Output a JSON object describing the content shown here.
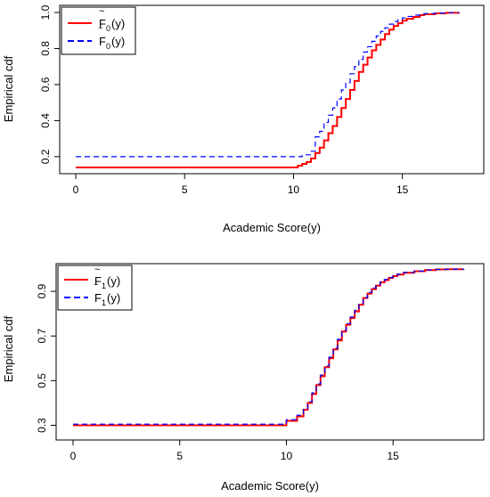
{
  "chart_data": [
    {
      "type": "line",
      "step": true,
      "xlabel": "Academic Score(y)",
      "ylabel": "Empirical cdf",
      "xlim": [
        0,
        18
      ],
      "ylim": [
        0.14,
        1.0
      ],
      "xticks": [
        0,
        5,
        10,
        15
      ],
      "xtick_labels": [
        "0",
        "5",
        "10",
        "15"
      ],
      "yticks": [
        0.2,
        0.4,
        0.6,
        0.8,
        1.0
      ],
      "ytick_labels": [
        "0.2",
        "0.4",
        "0.6",
        "0.8",
        "1.0"
      ],
      "grid": false,
      "legend_position": "top-left",
      "series": [
        {
          "legend_main": "F",
          "legend_accent": "~",
          "legend_sub": "0",
          "legend_suffix": "(y)",
          "color": "#ff0000",
          "dash": "solid",
          "x": [
            0,
            10.0,
            10.2,
            10.4,
            10.6,
            10.8,
            11.0,
            11.2,
            11.4,
            11.6,
            11.8,
            12.0,
            12.2,
            12.4,
            12.6,
            12.8,
            13.0,
            13.2,
            13.4,
            13.6,
            13.8,
            14.0,
            14.2,
            14.4,
            14.6,
            14.8,
            15.0,
            15.2,
            15.5,
            15.8,
            16.0,
            16.5,
            17.0,
            17.6
          ],
          "y": [
            0.14,
            0.14,
            0.15,
            0.16,
            0.17,
            0.19,
            0.22,
            0.25,
            0.29,
            0.33,
            0.37,
            0.42,
            0.47,
            0.52,
            0.57,
            0.62,
            0.67,
            0.71,
            0.75,
            0.79,
            0.82,
            0.85,
            0.88,
            0.905,
            0.925,
            0.94,
            0.955,
            0.965,
            0.975,
            0.985,
            0.99,
            0.995,
            0.998,
            1.0
          ]
        },
        {
          "legend_main": "F",
          "legend_accent": "‾",
          "legend_sub": "0",
          "legend_suffix": "(y)",
          "color": "#0000ff",
          "dash": "dashed",
          "x": [
            0,
            10.0,
            10.4,
            10.8,
            11.0,
            11.2,
            11.4,
            11.6,
            11.8,
            12.0,
            12.2,
            12.4,
            12.6,
            12.8,
            13.0,
            13.2,
            13.4,
            13.6,
            13.8,
            14.0,
            14.2,
            14.4,
            14.6,
            14.8,
            15.0,
            15.2,
            15.5,
            15.8,
            16.0,
            16.5,
            17.0,
            17.6
          ],
          "y": [
            0.2,
            0.2,
            0.21,
            0.23,
            0.31,
            0.34,
            0.39,
            0.43,
            0.47,
            0.52,
            0.57,
            0.61,
            0.66,
            0.7,
            0.74,
            0.78,
            0.81,
            0.84,
            0.87,
            0.895,
            0.915,
            0.935,
            0.95,
            0.96,
            0.97,
            0.978,
            0.985,
            0.99,
            0.994,
            0.997,
            0.999,
            1.0
          ]
        }
      ]
    },
    {
      "type": "line",
      "step": true,
      "xlabel": "Academic Score(y)",
      "ylabel": "Empirical cdf",
      "xlim": [
        0,
        18.5
      ],
      "ylim": [
        0.29,
        1.0
      ],
      "xticks": [
        0,
        5,
        10,
        15
      ],
      "xtick_labels": [
        "0",
        "5",
        "10",
        "15"
      ],
      "yticks": [
        0.3,
        0.5,
        0.7,
        0.9
      ],
      "ytick_labels": [
        "0.3",
        "0.5",
        "0.7",
        "0.9"
      ],
      "grid": false,
      "legend_position": "top-left",
      "series": [
        {
          "legend_main": "F",
          "legend_accent": "~",
          "legend_sub": "1",
          "legend_suffix": "(y)",
          "color": "#ff0000",
          "dash": "solid",
          "x": [
            0,
            10.0,
            10.5,
            10.8,
            11.0,
            11.2,
            11.4,
            11.6,
            11.8,
            12.0,
            12.2,
            12.4,
            12.6,
            12.8,
            13.0,
            13.2,
            13.4,
            13.6,
            13.8,
            14.0,
            14.2,
            14.4,
            14.6,
            14.8,
            15.0,
            15.2,
            15.5,
            16.0,
            16.5,
            17.0,
            17.5,
            18.3
          ],
          "y": [
            0.3,
            0.32,
            0.34,
            0.37,
            0.4,
            0.44,
            0.48,
            0.52,
            0.56,
            0.6,
            0.64,
            0.68,
            0.72,
            0.75,
            0.78,
            0.81,
            0.84,
            0.87,
            0.89,
            0.91,
            0.925,
            0.94,
            0.95,
            0.96,
            0.968,
            0.975,
            0.983,
            0.99,
            0.995,
            0.998,
            0.999,
            1.0
          ]
        },
        {
          "legend_main": "F",
          "legend_accent": "‾",
          "legend_sub": "1",
          "legend_suffix": "(y)",
          "color": "#0000ff",
          "dash": "dashed",
          "x": [
            0,
            10.0,
            10.5,
            10.8,
            11.0,
            11.2,
            11.4,
            11.6,
            11.8,
            12.0,
            12.2,
            12.4,
            12.6,
            12.8,
            13.0,
            13.2,
            13.4,
            13.6,
            13.8,
            14.0,
            14.2,
            14.4,
            14.6,
            14.8,
            15.0,
            15.2,
            15.5,
            16.0,
            16.5,
            17.0,
            17.5,
            18.3
          ],
          "y": [
            0.305,
            0.325,
            0.345,
            0.375,
            0.405,
            0.445,
            0.485,
            0.525,
            0.565,
            0.605,
            0.645,
            0.685,
            0.725,
            0.755,
            0.785,
            0.815,
            0.845,
            0.872,
            0.895,
            0.915,
            0.93,
            0.943,
            0.953,
            0.962,
            0.97,
            0.977,
            0.985,
            0.991,
            0.996,
            0.998,
            0.999,
            1.0
          ]
        }
      ]
    }
  ]
}
